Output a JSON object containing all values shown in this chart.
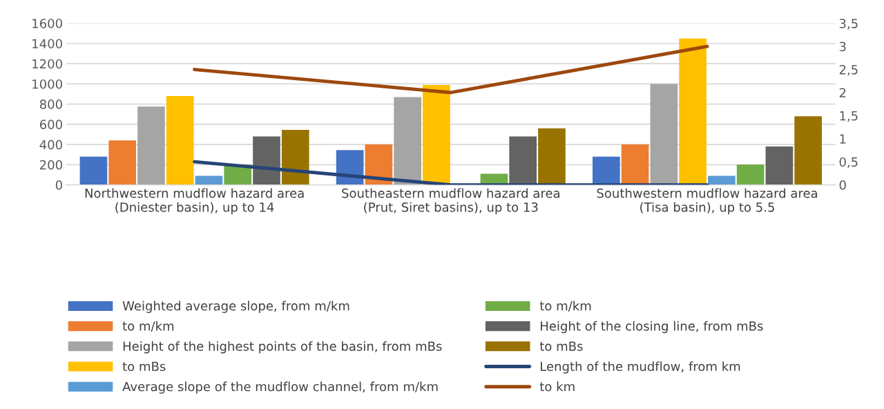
{
  "chart_data": {
    "type": "bar",
    "categories": [
      "Northwestern mudflow hazard area\n(Dniester basin), up to 14",
      "Southeastern mudflow hazard area\n(Prut, Siret basins), up to 13",
      "Southwestern mudflow hazard area\n(Tisa basin), up to 5.5"
    ],
    "series": [
      {
        "name": "Weighted average slope, from m/km",
        "color": "#4472c4",
        "values": [
          280,
          345,
          280
        ]
      },
      {
        "name": "to m/km",
        "color": "#ed7d31",
        "values": [
          440,
          400,
          400
        ]
      },
      {
        "name": "Height of the highest points of the basin, from mBs",
        "color": "#a5a5a5",
        "values": [
          775,
          870,
          1000
        ]
      },
      {
        "name": "to mBs",
        "color": "#ffc000",
        "values": [
          880,
          990,
          1450
        ]
      },
      {
        "name": "Average slope of the mudflow channel, from m/km",
        "color": "#5b9bd5",
        "values": [
          90,
          0,
          90
        ]
      },
      {
        "name": "to m/km",
        "color": "#70ad47",
        "values": [
          200,
          110,
          200
        ]
      },
      {
        "name": "Height of the closing line, from mBs",
        "color": "#636363",
        "values": [
          480,
          480,
          380
        ]
      },
      {
        "name": "to mBs",
        "color": "#997300",
        "values": [
          545,
          560,
          680
        ]
      },
      {
        "name": "Length of the mudflow, from km",
        "color": "#264478",
        "type": "line",
        "axis": "y2",
        "values": [
          0.5,
          0,
          0
        ]
      },
      {
        "name": "to km",
        "color": "#9e480e",
        "type": "line",
        "axis": "y2",
        "values": [
          2.5,
          2,
          3
        ]
      }
    ],
    "ylim": [
      0,
      1600
    ],
    "yticks": [
      0,
      200,
      400,
      600,
      800,
      1000,
      1200,
      1400,
      1600
    ],
    "y2lim": [
      0,
      3.5
    ],
    "y2ticks": [
      0,
      {
        "value": 0.5,
        "label": "0,5"
      },
      1,
      {
        "value": 1.5,
        "label": "1,5"
      },
      2,
      {
        "value": 2.5,
        "label": "2,5"
      },
      3,
      {
        "value": 3.5,
        "label": "3,5"
      }
    ],
    "grid": "y",
    "legend": "bottom"
  }
}
